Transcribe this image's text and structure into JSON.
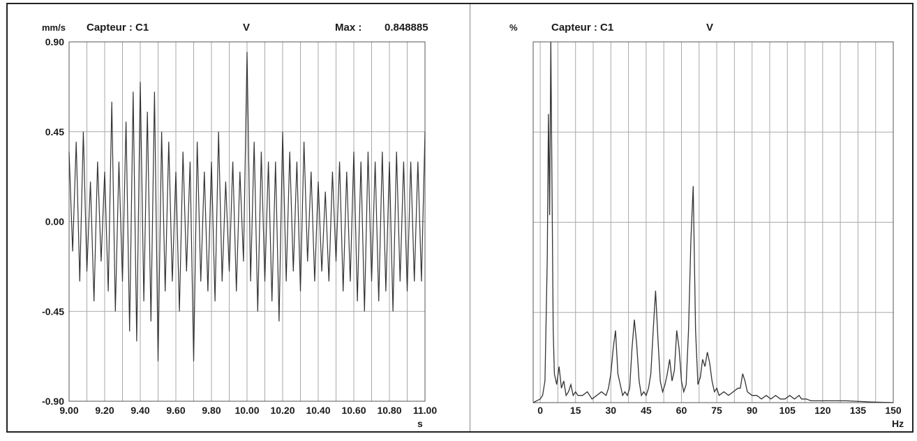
{
  "chart_data": [
    {
      "type": "line",
      "title": "Capteur : C1",
      "component": "V",
      "max_label": "Max :",
      "max_value": "0.848885",
      "ylabel": "mm/s",
      "xlabel": "s",
      "xlim": [
        9.0,
        11.0
      ],
      "ylim": [
        -0.9,
        0.9
      ],
      "x_ticks": [
        "9.00",
        "9.20",
        "9.40",
        "9.60",
        "9.80",
        "10.00",
        "10.20",
        "10.40",
        "10.60",
        "10.80",
        "11.00"
      ],
      "y_ticks": [
        "0.90",
        "0.45",
        "0.00",
        "-0.45",
        "-0.90"
      ],
      "grid": true,
      "series": [
        {
          "x": [
            9.0,
            9.02,
            9.04,
            9.06,
            9.08,
            9.1,
            9.12,
            9.14,
            9.16,
            9.18,
            9.2,
            9.22,
            9.24,
            9.26,
            9.28,
            9.3,
            9.32,
            9.34,
            9.36,
            9.38,
            9.4,
            9.42,
            9.44,
            9.46,
            9.48,
            9.5,
            9.52,
            9.54,
            9.56,
            9.58,
            9.6,
            9.62,
            9.64,
            9.66,
            9.68,
            9.7,
            9.72,
            9.74,
            9.76,
            9.78,
            9.8,
            9.82,
            9.84,
            9.86,
            9.88,
            9.9,
            9.92,
            9.94,
            9.96,
            9.98,
            10.0,
            10.02,
            10.04,
            10.06,
            10.08,
            10.1,
            10.12,
            10.14,
            10.16,
            10.18,
            10.2,
            10.22,
            10.24,
            10.26,
            10.28,
            10.3,
            10.32,
            10.34,
            10.36,
            10.38,
            10.4,
            10.42,
            10.44,
            10.46,
            10.48,
            10.5,
            10.52,
            10.54,
            10.56,
            10.58,
            10.6,
            10.62,
            10.64,
            10.66,
            10.68,
            10.7,
            10.72,
            10.74,
            10.76,
            10.78,
            10.8,
            10.82,
            10.84,
            10.86,
            10.88,
            10.9,
            10.92,
            10.94,
            10.96,
            10.98,
            11.0
          ],
          "values": [
            0.35,
            -0.15,
            0.4,
            -0.3,
            0.45,
            -0.25,
            0.2,
            -0.4,
            0.3,
            -0.2,
            0.25,
            -0.35,
            0.6,
            -0.45,
            0.3,
            -0.3,
            0.5,
            -0.55,
            0.65,
            -0.6,
            0.7,
            -0.4,
            0.55,
            -0.5,
            0.65,
            -0.7,
            0.45,
            -0.35,
            0.4,
            -0.3,
            0.25,
            -0.45,
            0.35,
            -0.25,
            0.3,
            -0.7,
            0.4,
            -0.3,
            0.25,
            -0.35,
            0.3,
            -0.4,
            0.45,
            -0.3,
            0.2,
            -0.25,
            0.3,
            -0.35,
            0.25,
            -0.2,
            0.85,
            -0.3,
            0.4,
            -0.45,
            0.35,
            -0.3,
            0.3,
            -0.4,
            0.3,
            -0.5,
            0.45,
            -0.3,
            0.35,
            -0.25,
            0.3,
            -0.35,
            0.4,
            -0.2,
            0.25,
            -0.3,
            0.2,
            -0.25,
            0.15,
            -0.3,
            0.25,
            -0.2,
            0.3,
            -0.35,
            0.25,
            -0.3,
            0.35,
            -0.4,
            0.3,
            -0.45,
            0.35,
            -0.3,
            0.3,
            -0.4,
            0.35,
            -0.35,
            0.3,
            -0.45,
            0.35,
            -0.3,
            0.3,
            -0.35,
            0.3,
            -0.3,
            0.3,
            -0.3,
            0.45
          ]
        }
      ]
    },
    {
      "type": "line",
      "title": "Capteur : C1",
      "component": "V",
      "ylabel": "%",
      "xlabel": "Hz",
      "xlim": [
        -3,
        150
      ],
      "ylim": [
        0,
        100
      ],
      "x_ticks": [
        "0",
        "15",
        "30",
        "45",
        "60",
        "75",
        "90",
        "105",
        "120",
        "135",
        "150"
      ],
      "grid": true,
      "series": [
        {
          "x": [
            -3,
            0,
            1,
            2,
            3,
            3.5,
            4,
            4.5,
            5,
            5.5,
            6,
            7,
            8,
            9,
            10,
            11,
            12,
            13,
            14,
            15,
            16,
            18,
            20,
            22,
            24,
            26,
            28,
            29,
            30,
            31,
            32,
            33,
            34,
            35,
            36,
            37,
            38,
            39,
            40,
            41,
            42,
            43,
            44,
            45,
            46,
            47,
            48,
            49,
            50,
            51,
            52,
            53,
            54,
            55,
            56,
            57,
            58,
            59,
            60,
            61,
            62,
            63,
            64,
            65,
            66,
            67,
            68,
            69,
            70,
            71,
            72,
            73,
            74,
            75,
            76,
            78,
            80,
            82,
            84,
            85,
            86,
            87,
            88,
            90,
            92,
            94,
            96,
            98,
            100,
            102,
            104,
            106,
            108,
            110,
            111,
            112,
            113,
            115,
            120,
            130,
            140,
            150
          ],
          "values": [
            0,
            1,
            2,
            6,
            40,
            80,
            52,
            100,
            60,
            20,
            8,
            5,
            10,
            4,
            6,
            2,
            3,
            5,
            2,
            3,
            2,
            2,
            3,
            1,
            2,
            3,
            2,
            4,
            8,
            15,
            20,
            8,
            5,
            2,
            3,
            2,
            4,
            15,
            23,
            16,
            6,
            2,
            3,
            2,
            4,
            8,
            20,
            31,
            18,
            6,
            3,
            5,
            8,
            12,
            6,
            9,
            20,
            15,
            6,
            3,
            5,
            20,
            45,
            60,
            20,
            5,
            7,
            12,
            10,
            14,
            11,
            6,
            3,
            4,
            2,
            3,
            2,
            3,
            4,
            4,
            8,
            6,
            3,
            2,
            2,
            1,
            2,
            1,
            2,
            1,
            1,
            2,
            1,
            2,
            1,
            1,
            1,
            0.5,
            0.5,
            0.5,
            0.2,
            0
          ]
        }
      ]
    }
  ]
}
